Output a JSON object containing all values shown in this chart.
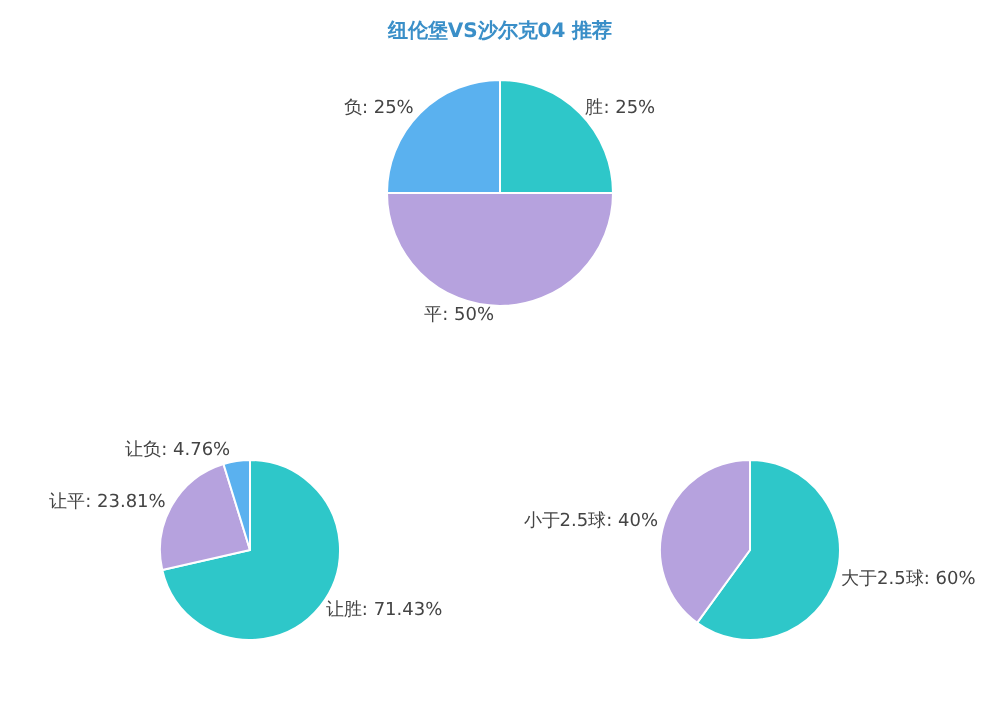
{
  "chart_data": [
    {
      "type": "pie",
      "title": "纽伦堡VS沙尔克04 推荐",
      "categories": [
        "胜: 25%",
        "平: 50%",
        "负: 25%"
      ],
      "values": [
        25,
        50,
        25
      ],
      "colors": [
        "#2ec7c9",
        "#b6a2de",
        "#5ab1ef"
      ],
      "legend": false
    },
    {
      "type": "pie",
      "categories": [
        "让胜: 71.43%",
        "让平: 23.81%",
        "让负: 4.76%"
      ],
      "values": [
        71.43,
        23.81,
        4.76
      ],
      "colors": [
        "#2ec7c9",
        "#b6a2de",
        "#5ab1ef"
      ],
      "legend": false
    },
    {
      "type": "pie",
      "categories": [
        "大于2.5球: 60%",
        "小于2.5球: 40%"
      ],
      "values": [
        60,
        40
      ],
      "colors": [
        "#2ec7c9",
        "#b6a2de"
      ],
      "legend": false
    }
  ]
}
